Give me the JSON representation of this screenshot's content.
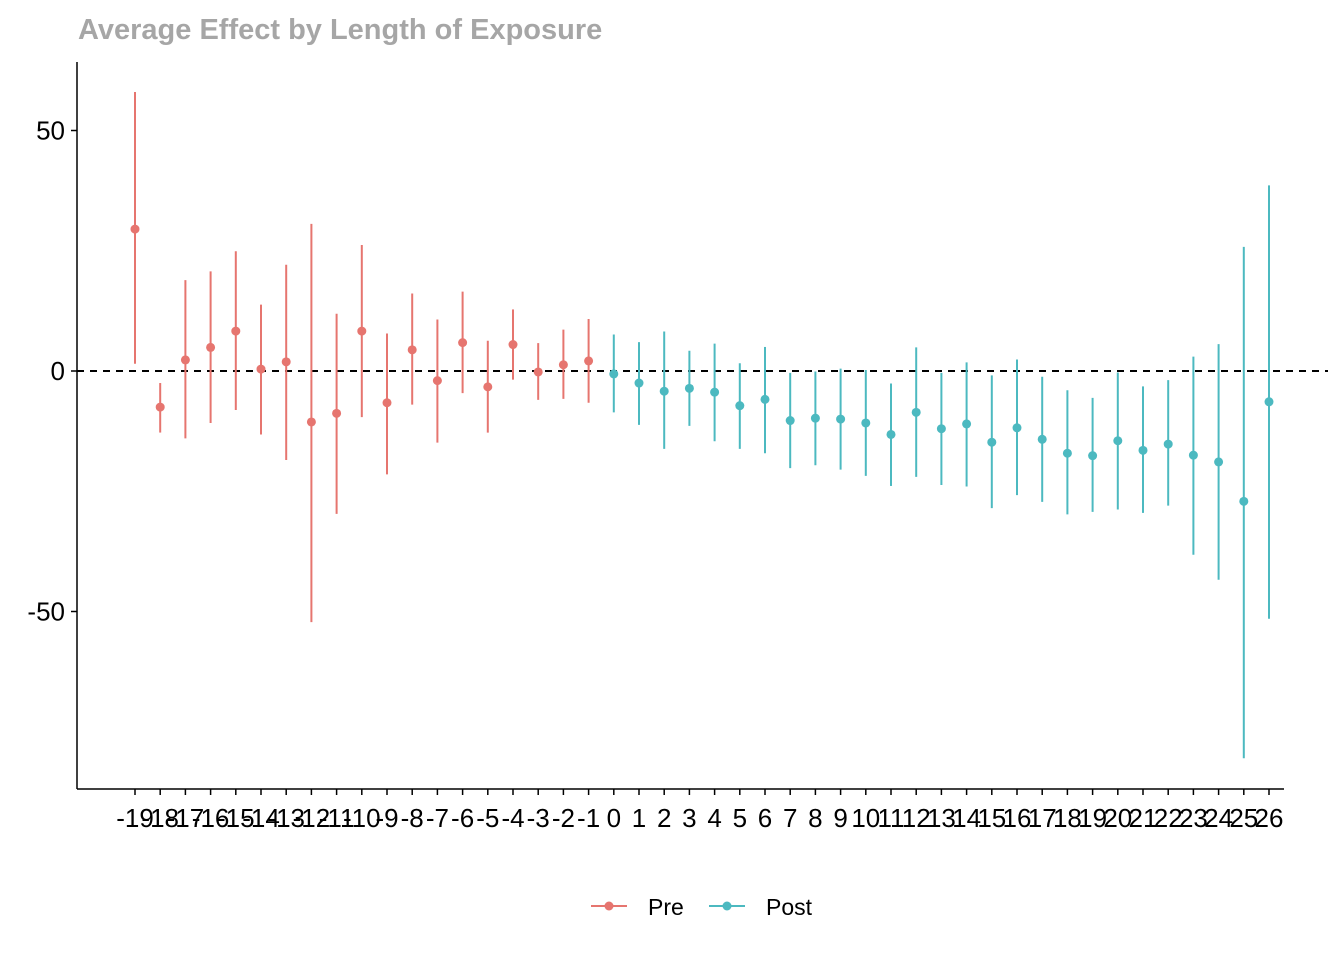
{
  "chart_data": {
    "type": "scatter",
    "title": "Average Effect by Length of Exposure",
    "xlabel": "",
    "ylabel": "",
    "ylim": [
      -86.5,
      64
    ],
    "y_ticks": [
      50,
      0,
      -50
    ],
    "reference_line": {
      "y": 0,
      "style": "dashed",
      "color": "#000000"
    },
    "grid": false,
    "legend_position": "bottom",
    "series": [
      {
        "name": "Pre",
        "color": "#E6756F",
        "x": [
          -19,
          -18,
          -17,
          -16,
          -15,
          -14,
          -13,
          -12,
          -11,
          -10,
          -9,
          -8,
          -7,
          -6,
          -5,
          -4,
          -3,
          -2,
          -1
        ],
        "y": [
          29.5,
          -7.5,
          2.3,
          4.9,
          8.3,
          0.4,
          1.9,
          -10.6,
          -8.8,
          8.3,
          -6.6,
          4.4,
          -2.0,
          5.9,
          -3.3,
          5.5,
          -0.2,
          1.3,
          2.1
        ],
        "ci_low": [
          1.5,
          -12.8,
          -14.0,
          -10.8,
          -8.1,
          -13.2,
          -18.5,
          -52.2,
          -29.7,
          -9.6,
          -21.5,
          -7.0,
          -14.9,
          -4.6,
          -12.8,
          -1.8,
          -6.0,
          -5.8,
          -6.6
        ],
        "ci_high": [
          58.0,
          -2.5,
          18.9,
          20.7,
          24.9,
          13.8,
          22.1,
          30.6,
          11.9,
          26.2,
          7.8,
          16.1,
          10.7,
          16.5,
          6.3,
          12.8,
          5.8,
          8.6,
          10.8
        ]
      },
      {
        "name": "Post",
        "color": "#4CB9C0",
        "x": [
          0,
          1,
          2,
          3,
          4,
          5,
          6,
          7,
          8,
          9,
          10,
          11,
          12,
          13,
          14,
          15,
          16,
          17,
          18,
          19,
          20,
          21,
          22,
          23,
          24,
          25,
          26
        ],
        "y": [
          -0.6,
          -2.5,
          -4.2,
          -3.6,
          -4.4,
          -7.2,
          -5.9,
          -10.3,
          -9.8,
          -10.0,
          -10.8,
          -13.2,
          -8.6,
          -12.0,
          -11.0,
          -14.8,
          -11.8,
          -14.2,
          -17.1,
          -17.6,
          -14.5,
          -16.5,
          -15.2,
          -17.5,
          -18.9,
          -27.1,
          -6.4
        ],
        "ci_low": [
          -8.6,
          -11.2,
          -16.2,
          -11.4,
          -14.6,
          -16.2,
          -17.1,
          -20.2,
          -19.6,
          -20.5,
          -21.8,
          -23.9,
          -22.0,
          -23.7,
          -24.0,
          -28.5,
          -25.8,
          -27.2,
          -29.8,
          -29.3,
          -28.8,
          -29.5,
          -28.0,
          -38.2,
          -43.4,
          -80.5,
          -51.5
        ],
        "ci_high": [
          7.6,
          6.0,
          8.2,
          4.2,
          5.7,
          1.6,
          5.0,
          -0.4,
          -0.1,
          0.5,
          0.2,
          -2.6,
          4.9,
          -0.4,
          1.8,
          -0.9,
          2.4,
          -1.2,
          -4.0,
          -5.6,
          -0.3,
          -3.2,
          -1.9,
          3.0,
          5.6,
          25.8,
          38.6
        ]
      }
    ],
    "x_categories": [
      -19,
      -18,
      -17,
      -16,
      -15,
      -14,
      -13,
      -12,
      -11,
      -10,
      -9,
      -8,
      -7,
      -6,
      -5,
      -4,
      -3,
      -2,
      -1,
      0,
      1,
      2,
      3,
      4,
      5,
      6,
      7,
      8,
      9,
      10,
      11,
      12,
      13,
      14,
      15,
      16,
      17,
      18,
      19,
      20,
      21,
      22,
      23,
      24,
      25,
      26
    ],
    "x_tick_labels": [
      "-19",
      "-18",
      "-17",
      "-16",
      "-15",
      "-14",
      "-13",
      "-12",
      "-11",
      "-10",
      "-9",
      "-8",
      "-7",
      "-6",
      "-5",
      "-4",
      "-3",
      "-2",
      "-1",
      "0",
      "1",
      "2",
      "3",
      "4",
      "5",
      "6",
      "7",
      "8",
      "9",
      "10",
      "11",
      "12",
      "13",
      "14",
      "15",
      "16",
      "17",
      "18",
      "19",
      "20",
      "21",
      "22",
      "23",
      "24",
      "25",
      "26"
    ]
  }
}
